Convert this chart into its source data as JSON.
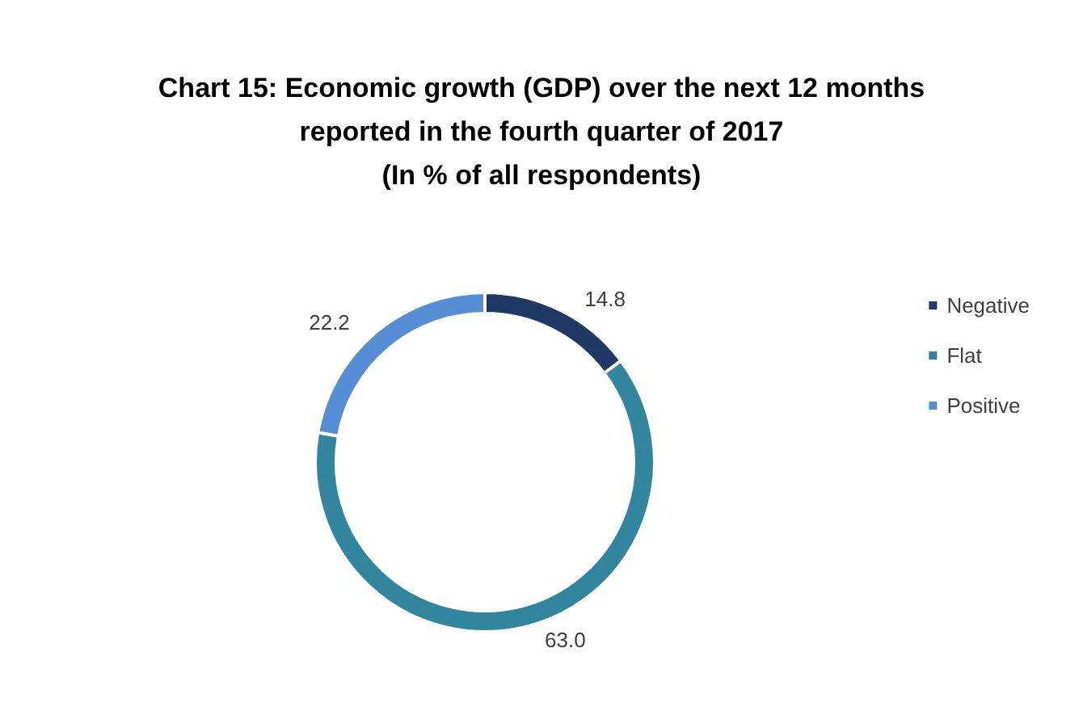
{
  "chart_data": {
    "type": "donut",
    "title": "Chart 15: Economic growth (GDP) over the next 12 months\nreported in the fourth quarter of 2017\n(In % of all respondents)",
    "categories": [
      "Negative",
      "Flat",
      "Positive"
    ],
    "values": [
      14.8,
      63.0,
      22.2
    ],
    "value_labels": [
      "14.8",
      "63.0",
      "22.2"
    ],
    "colors": [
      "#1f3864",
      "#31859c",
      "#558ed5"
    ],
    "legend": "right"
  }
}
